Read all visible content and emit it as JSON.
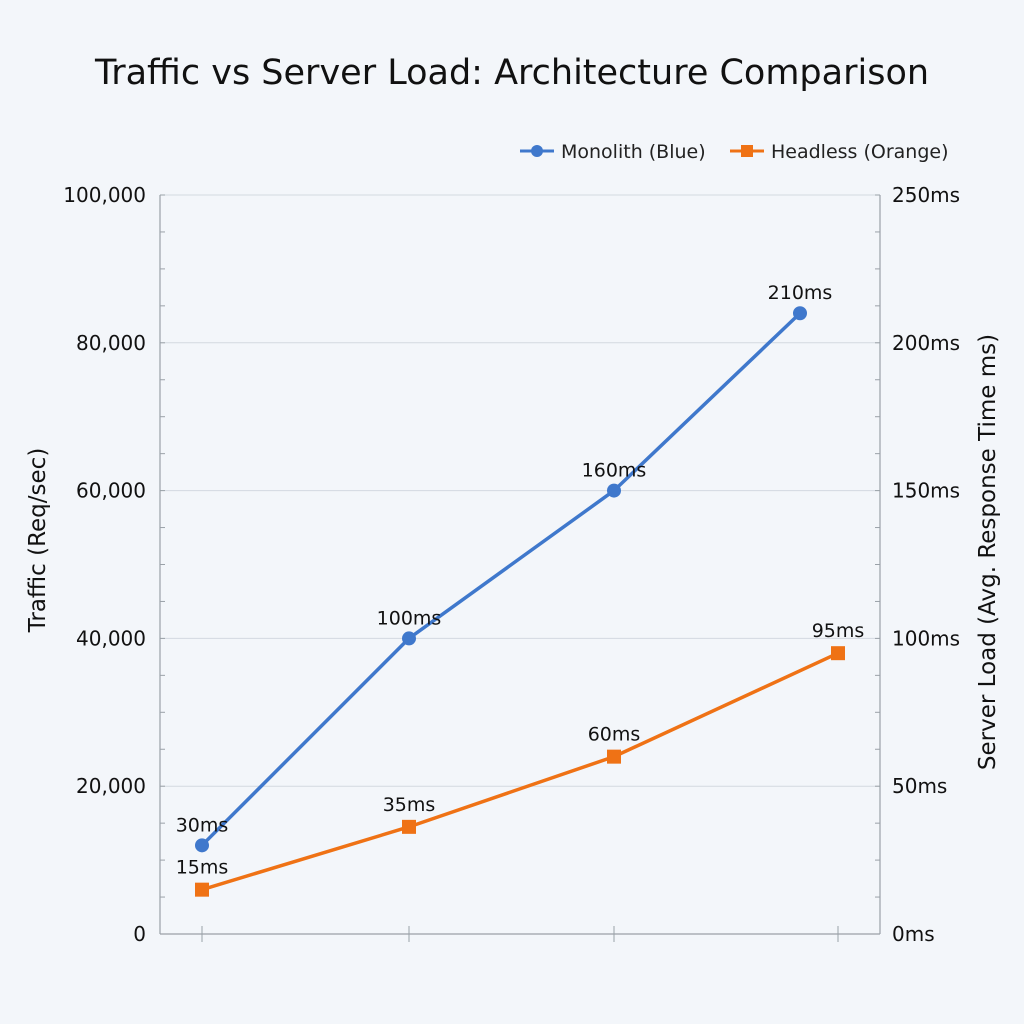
{
  "chart_data": {
    "type": "line",
    "title": "Traffic vs Server Load: Architecture Comparison",
    "y_left_label": "Traffic (Req/sec)",
    "y_right_label": "Server Load (Avg. Response Time ms)",
    "y_left_range": [
      0,
      100000
    ],
    "y_right_range": [
      0,
      250
    ],
    "y_left_ticks": [
      "0",
      "20,000",
      "40,000",
      "60,000",
      "80,000",
      "100,000"
    ],
    "y_left_tick_values": [
      0,
      20000,
      40000,
      60000,
      80000,
      100000
    ],
    "y_right_ticks": [
      "0ms",
      "50ms",
      "100ms",
      "150ms",
      "200ms",
      "250ms"
    ],
    "grid": true,
    "legend_position": "top-right",
    "series": [
      {
        "name": "Monolith (Blue)",
        "color": "#3f78cc",
        "marker": "circle",
        "x": [
          0,
          1,
          2,
          3
        ],
        "traffic": [
          12000,
          40000,
          60000,
          84000
        ],
        "labels": [
          "30ms",
          "100ms",
          "160ms",
          "210ms"
        ]
      },
      {
        "name": "Headless (Orange)",
        "color": "#ef7215",
        "marker": "square",
        "x": [
          0,
          1,
          2,
          3.1
        ],
        "traffic": [
          6000,
          14500,
          24000,
          38000
        ],
        "labels": [
          "15ms",
          "35ms",
          "60ms",
          "95ms"
        ]
      }
    ]
  }
}
